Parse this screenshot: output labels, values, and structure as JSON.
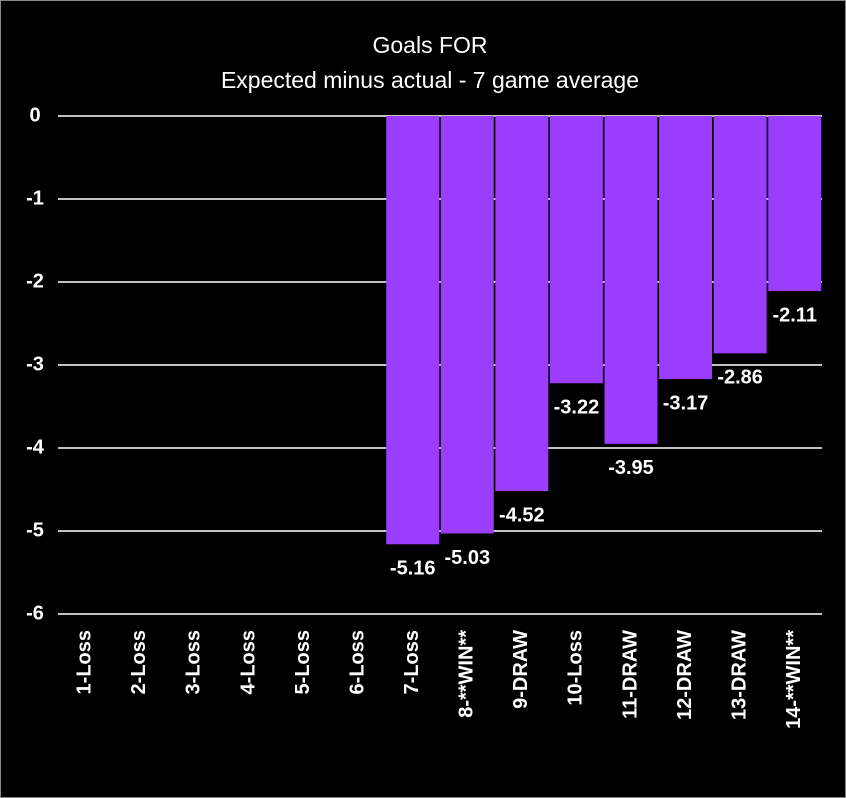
{
  "chart_data": {
    "type": "bar",
    "title": "Goals FOR",
    "subtitle": "Expected minus actual - 7 game average",
    "categories": [
      "1-Loss",
      "2-Loss",
      "3-Loss",
      "4-Loss",
      "5-Loss",
      "6-Loss",
      "7-Loss",
      "8-**WIN**",
      "9-DRAW",
      "10-Loss",
      "11-DRAW",
      "12-DRAW",
      "13-DRAW",
      "14-**WIN**"
    ],
    "values": [
      null,
      null,
      null,
      null,
      null,
      null,
      -5.16,
      -5.03,
      -4.52,
      -3.22,
      -3.95,
      -3.17,
      -2.86,
      -2.11
    ],
    "color": "#9b3dff",
    "ylim": [
      -6,
      0
    ],
    "yticks": [
      0,
      -1,
      -2,
      -3,
      -4,
      -5,
      -6
    ],
    "grid": true
  }
}
